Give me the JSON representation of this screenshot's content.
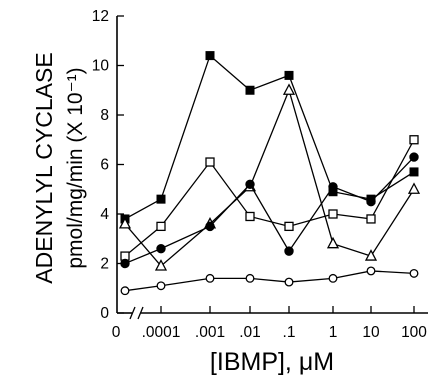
{
  "chart_data": {
    "type": "line",
    "xlabel": "[IBMP], μM",
    "ylabel_line1": "ADENYLYL CYCLASE",
    "ylabel_line2": "pmol/mg/min (X 10⁻¹)",
    "x_categories": [
      "0",
      ".0001",
      ".001",
      ".01",
      ".1",
      "1",
      "10",
      "100"
    ],
    "x_axis_break": "between 0 and .0001",
    "ylim": [
      0,
      12
    ],
    "y_ticks": [
      "0",
      "2",
      "4",
      "6",
      "8",
      "10",
      "12"
    ],
    "series": [
      {
        "marker": "filled-square",
        "values": [
          3.8,
          4.6,
          10.4,
          9.0,
          9.6,
          4.9,
          4.6,
          5.7
        ]
      },
      {
        "marker": "open-triangle",
        "values": [
          3.6,
          1.9,
          3.6,
          5.1,
          9.0,
          2.8,
          2.3,
          5.0
        ]
      },
      {
        "marker": "open-square",
        "values": [
          2.3,
          3.5,
          6.1,
          3.9,
          3.5,
          4.0,
          3.8,
          7.0
        ]
      },
      {
        "marker": "filled-circle",
        "values": [
          2.0,
          2.6,
          3.5,
          5.2,
          2.5,
          5.1,
          4.5,
          6.3
        ]
      },
      {
        "marker": "open-circle",
        "values": [
          0.9,
          1.1,
          1.4,
          1.4,
          1.25,
          1.4,
          1.7,
          1.6
        ]
      }
    ]
  }
}
